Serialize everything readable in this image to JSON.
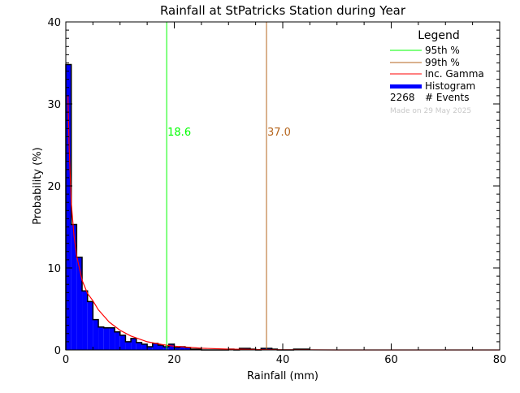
{
  "chart_data": {
    "type": "bar",
    "title": "Rainfall at StPatricks Station during Year",
    "xlabel": "Rainfall (mm)",
    "ylabel": "Probability (%)",
    "xlim": [
      0,
      80
    ],
    "ylim": [
      0,
      40
    ],
    "xticks": [
      "0",
      "20",
      "40",
      "60",
      "80"
    ],
    "yticks": [
      "0",
      "10",
      "20",
      "30",
      "40"
    ],
    "grid": false,
    "legend_placement": "top-right",
    "histogram": {
      "name": "Histogram",
      "bin_width": 1,
      "bin_start": 0,
      "values": [
        34.8,
        15.3,
        11.3,
        7.2,
        5.9,
        3.7,
        2.8,
        2.7,
        2.7,
        2.2,
        1.8,
        1.0,
        1.4,
        0.9,
        0.7,
        0.4,
        0.8,
        0.6,
        0.4,
        0.7,
        0.3,
        0.4,
        0.3,
        0.1,
        0.1,
        0.0,
        0.0,
        0.0,
        0.0,
        0.0,
        0.1,
        0.0,
        0.2,
        0.2,
        0.1,
        0.0,
        0.2,
        0.2,
        0.1,
        0.0,
        0.0,
        0.0,
        0.1,
        0.1,
        0.1
      ],
      "color": "#0000ff"
    },
    "gamma_curve": {
      "name": "Inc. Gamma",
      "color": "#ff0000",
      "x": [
        0.4,
        0.6,
        1,
        1.5,
        2,
        3,
        4,
        5,
        6,
        8,
        10,
        12,
        15,
        18,
        20,
        25,
        30,
        35,
        40,
        50,
        80
      ],
      "y": [
        31,
        25,
        18,
        14,
        11.5,
        8.5,
        6.9,
        6.0,
        4.9,
        3.4,
        2.4,
        1.7,
        1.0,
        0.63,
        0.46,
        0.21,
        0.1,
        0.05,
        0.02,
        0.0,
        0.0
      ]
    },
    "percentiles": [
      {
        "name": "95th %",
        "value": 18.6,
        "label": "18.6",
        "color": "#00ff00"
      },
      {
        "name": "99th %",
        "value": 37.0,
        "label": "37.0",
        "color": "#b5651d"
      }
    ],
    "legend": {
      "title": "Legend",
      "entries": [
        "95th %",
        "99th %",
        "Inc. Gamma",
        "Histogram"
      ],
      "events_count": "2268",
      "events_label": "# Events",
      "made_on": "Made on 29 May 2025"
    }
  }
}
